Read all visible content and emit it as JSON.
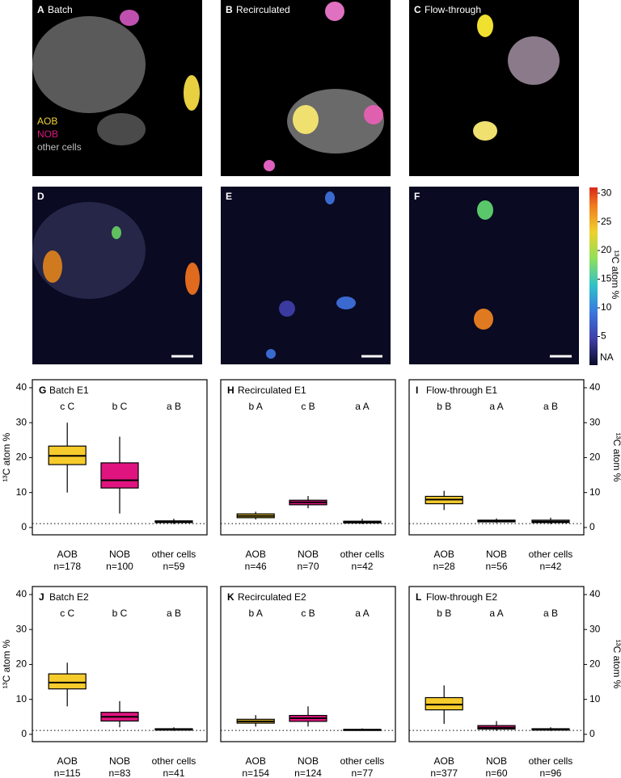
{
  "images": [
    {
      "label": "A",
      "title": "Batch"
    },
    {
      "label": "B",
      "title": "Recirculated"
    },
    {
      "label": "C",
      "title": "Flow-through"
    },
    {
      "label": "D"
    },
    {
      "label": "E"
    },
    {
      "label": "F"
    }
  ],
  "image_legend": [
    {
      "name": "AOB",
      "color": "#f2d43a"
    },
    {
      "name": "NOB",
      "color": "#e0177f"
    },
    {
      "name": "other cells",
      "color": "#bdbdbd"
    }
  ],
  "colorbar": {
    "label": "¹³C atom %",
    "lim": [
      0,
      31
    ],
    "ticks": [
      5,
      10,
      15,
      20,
      25,
      30
    ],
    "na_label": "NA"
  },
  "chart_data": [
    {
      "type": "box",
      "label": "G",
      "title": "Batch E1",
      "y_axis": "left",
      "ylabel": "¹³C atom %",
      "ylim": [
        -2.1,
        42.3
      ],
      "yticks": [
        0,
        10,
        20,
        30,
        40
      ],
      "reference_line": 1.1,
      "categories": [
        "AOB",
        "NOB",
        "other cells"
      ],
      "n_labels": [
        "n=178",
        "n=100",
        "n=59"
      ],
      "letters": [
        "c C",
        "b C",
        "a B"
      ],
      "colors": [
        "#f6cb2c",
        "#e0147f",
        "#d6d6d6"
      ],
      "whisker_low": [
        10,
        4,
        1
      ],
      "q1": [
        18,
        11.3,
        1.4
      ],
      "median": [
        20.5,
        13.5,
        1.6
      ],
      "q3": [
        23.3,
        18.5,
        1.9
      ],
      "whisker_high": [
        30,
        26,
        2.5
      ]
    },
    {
      "type": "box",
      "label": "H",
      "title": "Recirculated E1",
      "ylim": [
        -2.1,
        42.3
      ],
      "reference_line": 1.1,
      "categories": [
        "AOB",
        "NOB",
        "other cells"
      ],
      "n_labels": [
        "n=46",
        "n=70",
        "n=42"
      ],
      "letters": [
        "b A",
        "c B",
        "a A"
      ],
      "colors": [
        "#f6cb2c",
        "#e0147f",
        "#d6d6d6"
      ],
      "whisker_low": [
        2.3,
        5.5,
        1
      ],
      "q1": [
        2.8,
        6.5,
        1.3
      ],
      "median": [
        3.3,
        7.2,
        1.5
      ],
      "q3": [
        3.9,
        7.8,
        1.8
      ],
      "whisker_high": [
        4.5,
        9,
        2.5
      ]
    },
    {
      "type": "box",
      "label": "I",
      "title": "Flow-through E1",
      "y_axis": "right",
      "ylabel": "¹³C atom %",
      "ylim": [
        -2.1,
        42.3
      ],
      "yticks": [
        0,
        10,
        20,
        30,
        40
      ],
      "reference_line": 1.1,
      "categories": [
        "AOB",
        "NOB",
        "other cells"
      ],
      "n_labels": [
        "n=28",
        "n=56",
        "n=42"
      ],
      "letters": [
        "b B",
        "a A",
        "a B"
      ],
      "colors": [
        "#f6cb2c",
        "#e0147f",
        "#d6d6d6"
      ],
      "whisker_low": [
        5,
        1.3,
        1
      ],
      "q1": [
        6.8,
        1.6,
        1.4
      ],
      "median": [
        8,
        1.9,
        1.7
      ],
      "q3": [
        8.9,
        2.1,
        2.1
      ],
      "whisker_high": [
        10.5,
        2.6,
        2.8
      ]
    },
    {
      "type": "box",
      "label": "J",
      "title": "Batch E2",
      "y_axis": "left",
      "ylabel": "¹³C atom %",
      "ylim": [
        -2.1,
        42.3
      ],
      "yticks": [
        0,
        10,
        20,
        30,
        40
      ],
      "reference_line": 1.1,
      "categories": [
        "AOB",
        "NOB",
        "other cells"
      ],
      "n_labels": [
        "n=115",
        "n=83",
        "n=41"
      ],
      "letters": [
        "c C",
        "b C",
        "a B"
      ],
      "colors": [
        "#f6cb2c",
        "#e0147f",
        "#d6d6d6"
      ],
      "whisker_low": [
        8,
        2,
        1
      ],
      "q1": [
        13,
        3.8,
        1.2
      ],
      "median": [
        14.8,
        5,
        1.4
      ],
      "q3": [
        17.3,
        6.3,
        1.6
      ],
      "whisker_high": [
        20.5,
        9.5,
        2
      ]
    },
    {
      "type": "box",
      "label": "K",
      "title": "Recirculated E2",
      "ylim": [
        -2.1,
        42.3
      ],
      "reference_line": 1.1,
      "categories": [
        "AOB",
        "NOB",
        "other cells"
      ],
      "n_labels": [
        "n=154",
        "n=124",
        "n=77"
      ],
      "letters": [
        "b A",
        "c B",
        "a A"
      ],
      "colors": [
        "#f6cb2c",
        "#e0147f",
        "#d6d6d6"
      ],
      "whisker_low": [
        2.2,
        2.2,
        1
      ],
      "q1": [
        3.2,
        3.7,
        1.1
      ],
      "median": [
        3.7,
        4.6,
        1.3
      ],
      "q3": [
        4.3,
        5.4,
        1.4
      ],
      "whisker_high": [
        5.5,
        8,
        1.7
      ]
    },
    {
      "type": "box",
      "label": "L",
      "title": "Flow-through E2",
      "y_axis": "right",
      "ylabel": "¹³C atom %",
      "ylim": [
        -2.1,
        42.3
      ],
      "yticks": [
        0,
        10,
        20,
        30,
        40
      ],
      "reference_line": 1.1,
      "categories": [
        "AOB",
        "NOB",
        "other cells"
      ],
      "n_labels": [
        "n=377",
        "n=60",
        "n=96"
      ],
      "letters": [
        "b B",
        "a A",
        "a B"
      ],
      "colors": [
        "#f6cb2c",
        "#e0147f",
        "#d6d6d6"
      ],
      "whisker_low": [
        3,
        1,
        1
      ],
      "q1": [
        7,
        1.5,
        1.2
      ],
      "median": [
        8.5,
        1.9,
        1.4
      ],
      "q3": [
        10.5,
        2.5,
        1.6
      ],
      "whisker_high": [
        14,
        3.8,
        2
      ]
    }
  ]
}
